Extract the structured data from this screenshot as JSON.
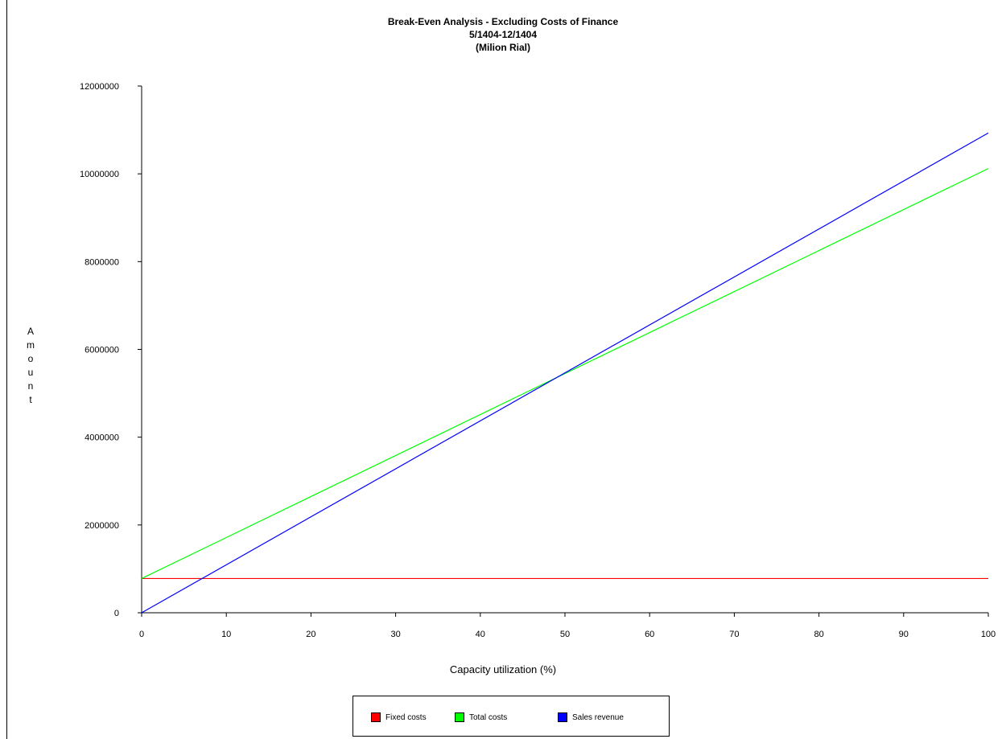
{
  "chart_data": {
    "type": "line",
    "title": "Break-Even Analysis - Excluding Costs of Finance",
    "subtitle_lines": [
      "5/1404-12/1404",
      "(Milion Rial)"
    ],
    "xlabel": "Capacity utilization (%)",
    "ylabel": "Amount",
    "xlim": [
      0,
      100
    ],
    "ylim": [
      0,
      12000000
    ],
    "xticks": [
      "0",
      "10",
      "20",
      "30",
      "40",
      "50",
      "60",
      "70",
      "80",
      "90",
      "100"
    ],
    "yticks": [
      "0",
      "2000000",
      "4000000",
      "6000000",
      "8000000",
      "10000000",
      "12000000"
    ],
    "grid": false,
    "legend_position": "bottom",
    "x": [
      0,
      100
    ],
    "series": [
      {
        "name": "Fixed costs",
        "color": "#ff0000",
        "values": [
          780000,
          780000
        ]
      },
      {
        "name": "Total costs",
        "color": "#00ff00",
        "values": [
          780000,
          10120000
        ]
      },
      {
        "name": "Sales revenue",
        "color": "#0000ff",
        "values": [
          0,
          10930000
        ]
      }
    ]
  }
}
